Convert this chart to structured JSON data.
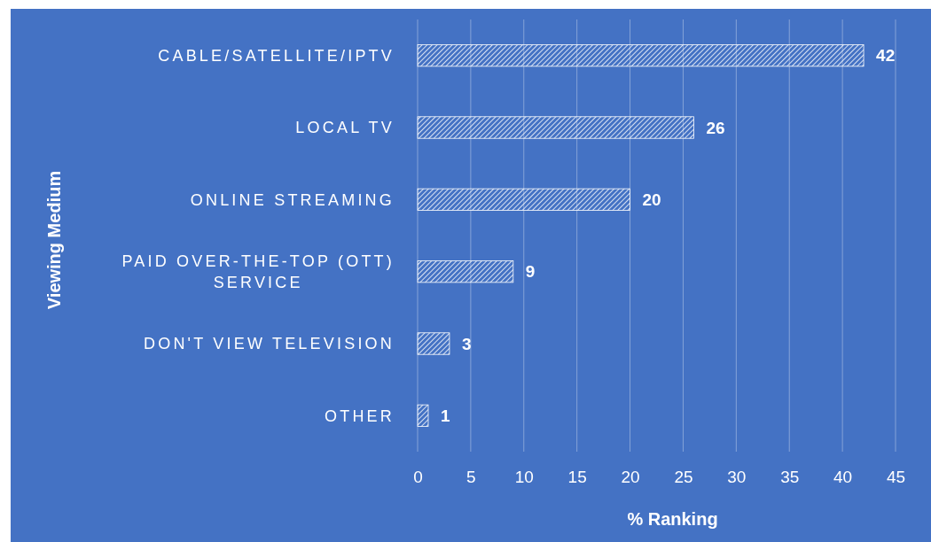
{
  "chart_data": {
    "type": "bar",
    "orientation": "horizontal",
    "xlabel": "% Ranking",
    "ylabel": "Viewing Medium",
    "categories": [
      "CABLE/SATELLITE/IPTV",
      "LOCAL TV",
      "ONLINE STREAMING",
      "PAID OVER-THE-TOP (OTT) SERVICE",
      "DON'T VIEW TELEVISION",
      "OTHER"
    ],
    "values": [
      42,
      26,
      20,
      9,
      3,
      1
    ],
    "color": "#ffffff",
    "data_labels": true,
    "xlim": [
      0,
      45
    ],
    "xticks": [
      0,
      5,
      10,
      15,
      20,
      25,
      30,
      35,
      40,
      45
    ],
    "grid": "x"
  }
}
